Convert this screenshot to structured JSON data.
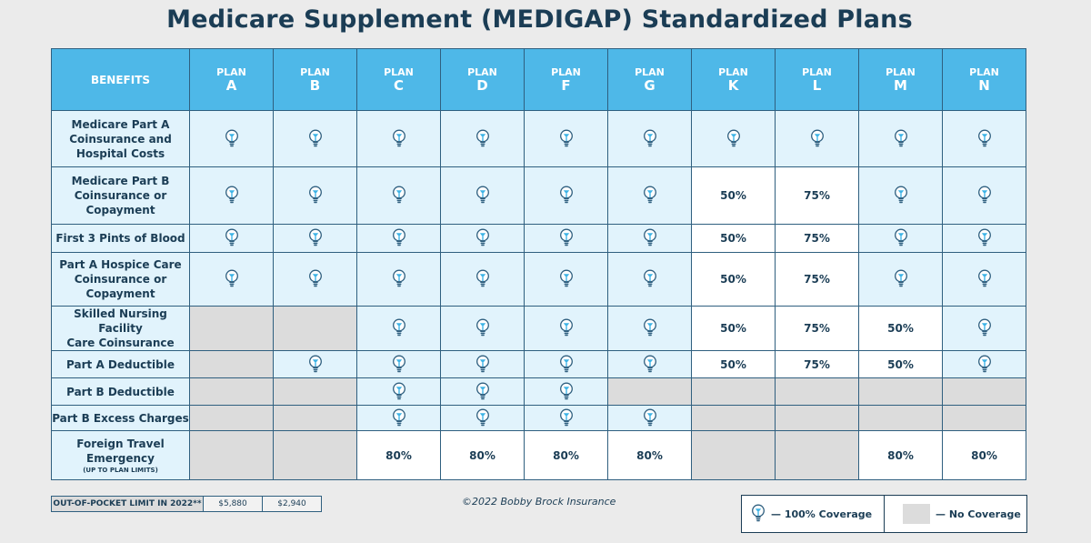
{
  "title": "Medicare Supplement (MEDIGAP) Standardized Plans",
  "header": {
    "benefits_label": "BENEFITS",
    "plan_prefix": "PLAN",
    "plans": [
      "A",
      "B",
      "C",
      "D",
      "F",
      "G",
      "K",
      "L",
      "M",
      "N"
    ]
  },
  "rows": [
    {
      "lines": [
        "Medicare Part A",
        "Coinsurance and",
        "Hospital Costs"
      ],
      "cells": [
        "check",
        "check",
        "check",
        "check",
        "check",
        "check",
        "check",
        "check",
        "check",
        "check"
      ]
    },
    {
      "lines": [
        "Medicare Part B",
        "Coinsurance or",
        "Copayment"
      ],
      "cells": [
        "check",
        "check",
        "check",
        "check",
        "check",
        "check",
        "50%",
        "75%",
        "check",
        "check"
      ]
    },
    {
      "lines": [
        "First 3 Pints of Blood"
      ],
      "cells": [
        "check",
        "check",
        "check",
        "check",
        "check",
        "check",
        "50%",
        "75%",
        "check",
        "check"
      ]
    },
    {
      "lines": [
        "Part A Hospice Care",
        "Coinsurance or",
        "Copayment"
      ],
      "cells": [
        "check",
        "check",
        "check",
        "check",
        "check",
        "check",
        "50%",
        "75%",
        "check",
        "check"
      ]
    },
    {
      "lines": [
        "Skilled Nursing Facility",
        "Care Coinsurance"
      ],
      "cells": [
        "none",
        "none",
        "check",
        "check",
        "check",
        "check",
        "50%",
        "75%",
        "50%",
        "check"
      ]
    },
    {
      "lines": [
        "Part A Deductible"
      ],
      "cells": [
        "none",
        "check",
        "check",
        "check",
        "check",
        "check",
        "50%",
        "75%",
        "50%",
        "check"
      ]
    },
    {
      "lines": [
        "Part B Deductible"
      ],
      "cells": [
        "none",
        "none",
        "check",
        "check",
        "check",
        "none",
        "none",
        "none",
        "none",
        "none"
      ]
    },
    {
      "lines": [
        "Part B Excess Charges"
      ],
      "cells": [
        "none",
        "none",
        "check",
        "check",
        "check",
        "check",
        "none",
        "none",
        "none",
        "none"
      ]
    },
    {
      "lines": [
        "Foreign Travel",
        "Emergency"
      ],
      "sub": "(UP TO PLAN LIMITS)",
      "cells": [
        "none",
        "none",
        "80%",
        "80%",
        "80%",
        "80%",
        "none",
        "none",
        "80%",
        "80%"
      ]
    }
  ],
  "footer": {
    "oop_label": "OUT-OF-POCKET LIMIT IN 2022**",
    "oop_values": [
      "$5,880",
      "$2,940"
    ],
    "copyright": "©2022 Bobby Brock Insurance",
    "legend_coverage": "— 100% Coverage",
    "legend_none": "— No Coverage"
  },
  "colors": {
    "header_bg": "#4eb8e8",
    "covered_bg": "#e1f3fc",
    "none_bg": "#dcdcdc",
    "text_dark": "#1b3d55",
    "bulb": "#3fb4e6"
  },
  "icons": {
    "coverage": "lightbulb-icon"
  }
}
